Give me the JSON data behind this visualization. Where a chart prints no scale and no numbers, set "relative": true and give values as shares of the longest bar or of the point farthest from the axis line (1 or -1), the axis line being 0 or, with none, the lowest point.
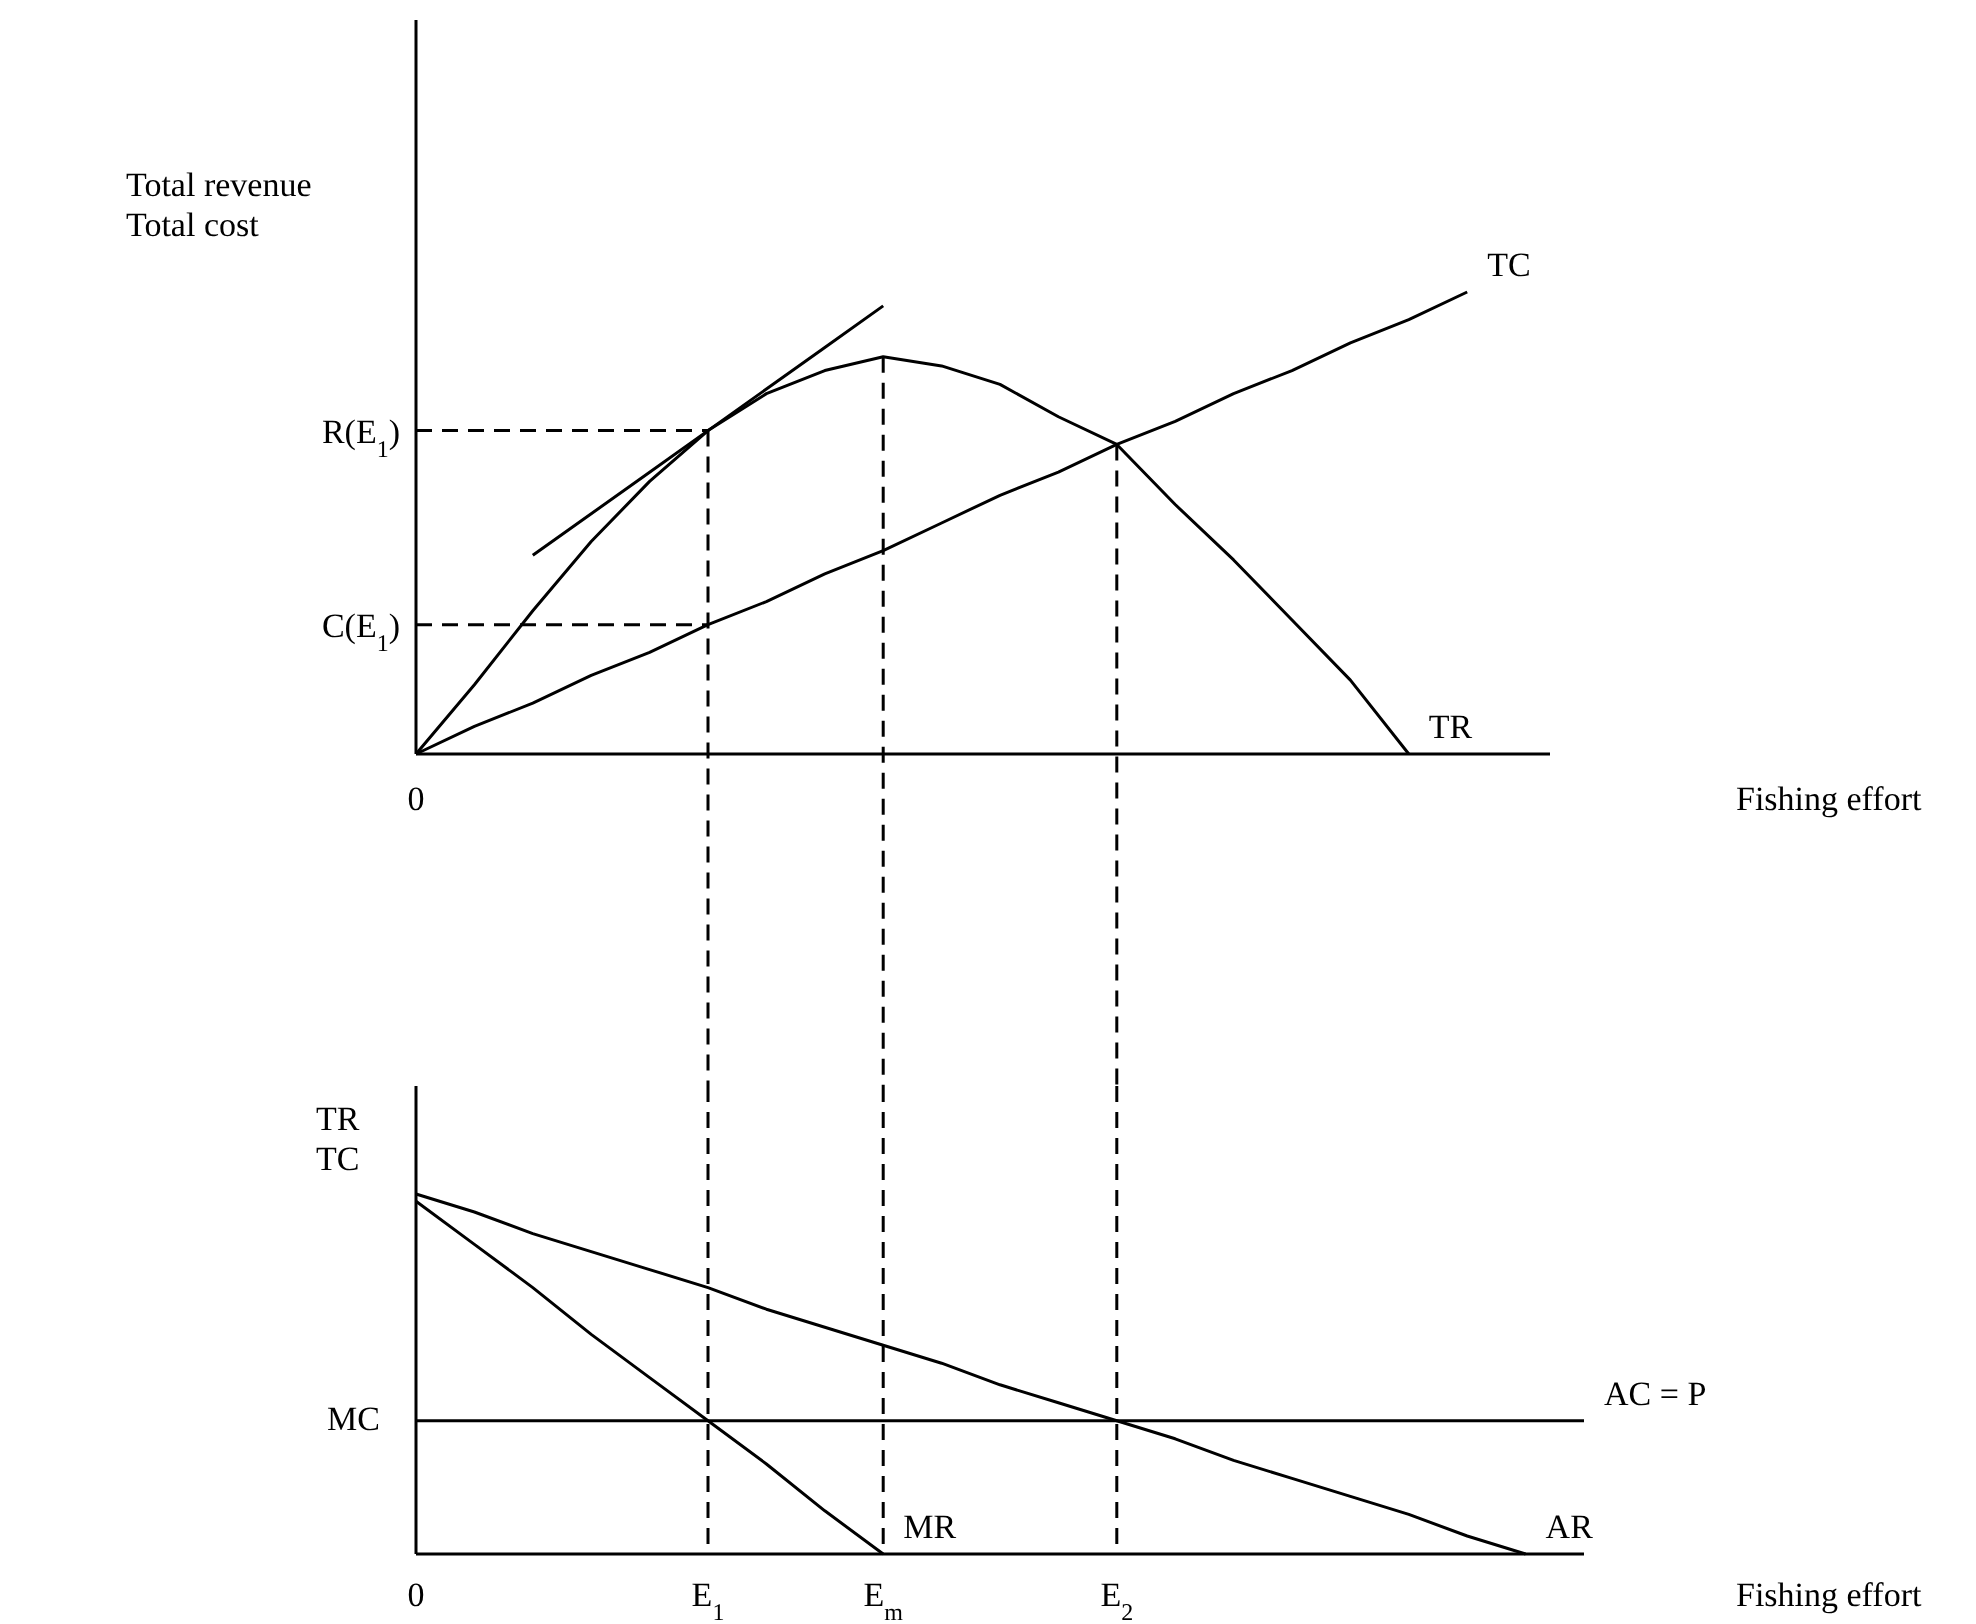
{
  "chart_data": [
    {
      "type": "line",
      "relative": true,
      "ylabel": "Total revenue\nTotal cost",
      "xlabel": "Fishing effort",
      "marker": "none",
      "tick_labels": false,
      "categories": [
        "0",
        null,
        null,
        null,
        null,
        "E$_{1}$",
        null,
        null,
        "E$_{m}$",
        null,
        null,
        null,
        "E$_{2}$",
        null,
        null,
        null,
        null,
        null,
        null,
        null,
        null
      ],
      "series": [
        {
          "name": "TR",
          "color": "#000000",
          "line_style": "solid",
          "values": [
            0,
            0.15,
            0.31,
            0.46,
            0.59,
            0.7,
            0.78,
            0.83,
            0.86,
            0.84,
            0.8,
            0.73,
            0.67,
            0.54,
            0.42,
            0.29,
            0.16,
            0,
            null,
            null,
            null
          ]
        },
        {
          "name": "TC",
          "color": "#000000",
          "line_style": "solid",
          "values": [
            0,
            0.06,
            0.11,
            0.17,
            0.22,
            0.28,
            0.33,
            0.39,
            0.44,
            0.5,
            0.56,
            0.61,
            0.67,
            0.72,
            0.78,
            0.83,
            0.89,
            0.94,
            1,
            null,
            null
          ]
        },
        {
          "color": "#000000",
          "line_style": "solid",
          "values": [
            null,
            null,
            0.43,
            0.52,
            0.61,
            0.7,
            0.79,
            0.88,
            0.97,
            null,
            null,
            null,
            null,
            null,
            null,
            null,
            null,
            null,
            null,
            null,
            null
          ]
        }
      ],
      "ref_lines": [
        {
          "axis": "y",
          "value": 0.7,
          "label": "R(E$_{1}$)",
          "line_style": "dashed",
          "color": "#000000"
        },
        {
          "axis": "y",
          "value": 0.28,
          "label": "C(E$_{1}$)",
          "line_style": "dashed",
          "color": "#000000"
        },
        {
          "axis": "x",
          "value": "E$_{1}$",
          "line_style": "dashed",
          "color": "#000000"
        },
        {
          "axis": "x",
          "value": "E$_{m}$",
          "line_style": "dashed",
          "color": "#000000"
        },
        {
          "axis": "x",
          "value": "E$_{2}$",
          "line_style": "dashed",
          "color": "#000000"
        }
      ],
      "annotations": [
        "0"
      ]
    },
    {
      "type": "line",
      "relative": true,
      "ylabel": "TR\nTC",
      "xlabel": "Fishing effort",
      "marker": "none",
      "categories": [
        "0",
        null,
        null,
        null,
        null,
        "E$_{1}$",
        null,
        null,
        "E$_{m}$",
        null,
        null,
        null,
        "E$_{2}$",
        null,
        null,
        null,
        null,
        null,
        null,
        null,
        null
      ],
      "series": [
        {
          "name": "AR",
          "color": "#000000",
          "line_style": "solid",
          "values": [
            1,
            0.95,
            0.89,
            0.84,
            0.79,
            0.74,
            0.68,
            0.63,
            0.58,
            0.53,
            0.47,
            0.42,
            0.37,
            0.32,
            0.26,
            0.21,
            0.16,
            0.11,
            0.05,
            0,
            null
          ]
        },
        {
          "name": "MR",
          "color": "#000000",
          "line_style": "solid",
          "values": [
            0.98,
            0.86,
            0.74,
            0.61,
            0.49,
            0.37,
            0.25,
            0.12,
            0,
            null,
            null,
            null,
            null,
            null,
            null,
            null,
            null,
            null,
            null,
            null,
            null
          ]
        },
        {
          "name": "AC = P",
          "color": "#000000",
          "line_style": "solid",
          "values": [
            0.37,
            0.37,
            0.37,
            0.37,
            0.37,
            0.37,
            0.37,
            0.37,
            0.37,
            0.37,
            0.37,
            0.37,
            0.37,
            0.37,
            0.37,
            0.37,
            0.37,
            0.37,
            0.37,
            0.37,
            0.37
          ]
        }
      ],
      "ref_lines": [
        {
          "axis": "x",
          "value": "E$_{1}$",
          "line_style": "dashed",
          "color": "#000000"
        },
        {
          "axis": "x",
          "value": "E$_{m}$",
          "line_style": "dashed",
          "color": "#000000"
        },
        {
          "axis": "x",
          "value": "E$_{2}$",
          "line_style": "dashed",
          "color": "#000000"
        }
      ],
      "annotations": [
        "MC"
      ]
    }
  ]
}
